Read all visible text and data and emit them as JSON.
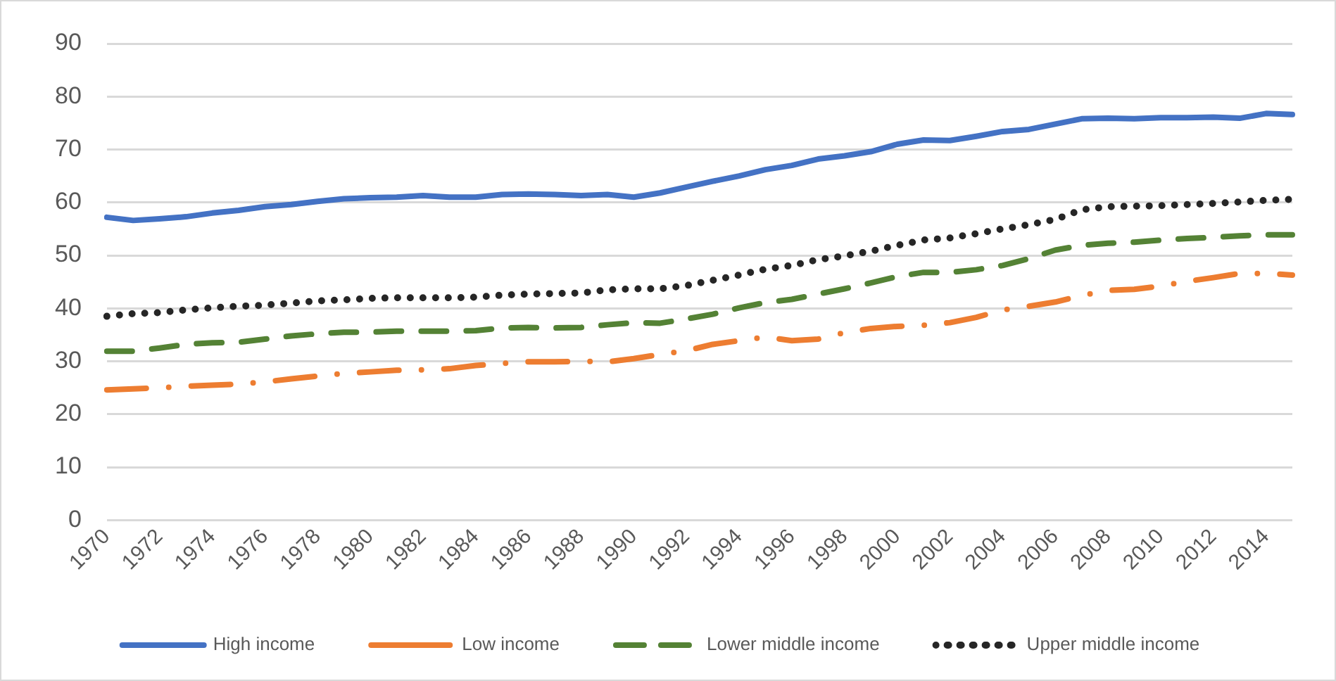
{
  "chart_data": {
    "type": "line",
    "categories": [
      "1970",
      null,
      "1972",
      null,
      "1974",
      null,
      "1976",
      null,
      "1978",
      null,
      "1980",
      null,
      "1982",
      null,
      "1984",
      null,
      "1986",
      null,
      "1988",
      null,
      "1990",
      null,
      "1992",
      null,
      "1994",
      null,
      "1996",
      null,
      "1998",
      null,
      "2000",
      null,
      "2002",
      null,
      "2004",
      null,
      "2006",
      null,
      "2008",
      null,
      "2010",
      null,
      "2012",
      null,
      "2014",
      null
    ],
    "series": [
      {
        "name": "High income",
        "color": "#4472c4",
        "line_style": "solid",
        "values": [
          57.2,
          56.6,
          56.9,
          57.3,
          58,
          58.5,
          59.2,
          59.6,
          60.2,
          60.7,
          60.9,
          61,
          61.3,
          61,
          61,
          61.5,
          61.6,
          61.5,
          61.3,
          61.5,
          61,
          61.8,
          62.9,
          64,
          65,
          66.2,
          67,
          68.2,
          68.8,
          69.6,
          71,
          71.8,
          71.7,
          72.5,
          73.4,
          73.8,
          74.8,
          75.8,
          75.9,
          75.8,
          76,
          76,
          76.1,
          75.9,
          76.8,
          76.6
        ]
      },
      {
        "name": "Low income",
        "color": "#ed7d31",
        "line_style": "dashdot",
        "values": [
          24.6,
          24.8,
          25,
          25.3,
          25.5,
          25.7,
          26.1,
          26.7,
          27.2,
          27.7,
          28,
          28.3,
          28.4,
          28.6,
          29.2,
          29.6,
          29.9,
          29.9,
          30,
          29.9,
          30.5,
          31.3,
          32,
          33.2,
          33.9,
          34.6,
          33.9,
          34.2,
          35.4,
          36.2,
          36.6,
          36.8,
          37.3,
          38.3,
          39.7,
          40.4,
          41.2,
          42.4,
          43.4,
          43.6,
          44.2,
          45.1,
          45.8,
          46.6,
          46.6,
          46.3
        ]
      },
      {
        "name": "Lower middle income",
        "color": "#548235",
        "line_style": "dashed",
        "values": [
          31.9,
          31.9,
          32.5,
          33.2,
          33.5,
          33.6,
          34.2,
          34.8,
          35.2,
          35.5,
          35.5,
          35.7,
          35.7,
          35.7,
          35.8,
          36.3,
          36.4,
          36.3,
          36.4,
          36.9,
          37.3,
          37.2,
          38,
          38.9,
          40.1,
          41.1,
          41.7,
          42.7,
          43.7,
          44.8,
          46,
          46.8,
          46.8,
          47.3,
          48.1,
          49.4,
          51,
          51.9,
          52.3,
          52.5,
          52.9,
          53.2,
          53.4,
          53.7,
          53.9,
          53.9
        ]
      },
      {
        "name": "Upper middle income",
        "color": "#262626",
        "line_style": "dotted",
        "values": [
          38.5,
          39,
          39.2,
          39.7,
          40.1,
          40.4,
          40.6,
          41,
          41.4,
          41.6,
          41.9,
          42,
          42,
          42,
          42.1,
          42.5,
          42.7,
          42.8,
          42.9,
          43.5,
          43.7,
          43.7,
          44.3,
          45.3,
          46.3,
          47.4,
          48.1,
          49.2,
          49.9,
          50.8,
          51.9,
          52.9,
          53.3,
          54.1,
          55,
          55.8,
          56.8,
          58.6,
          59.2,
          59.3,
          59.4,
          59.6,
          59.8,
          60.1,
          60.4,
          60.6
        ]
      }
    ],
    "ylim": [
      0,
      90
    ],
    "yticks": [
      0,
      10,
      20,
      30,
      40,
      50,
      60,
      70,
      80,
      90
    ],
    "grid": "y",
    "legend": "bottom",
    "marker": "none"
  }
}
